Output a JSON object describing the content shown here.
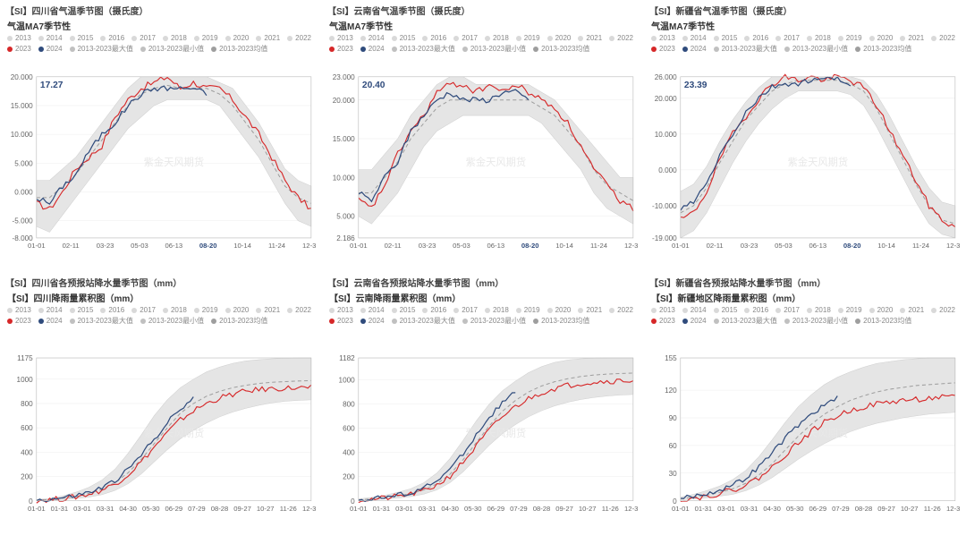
{
  "watermark": "紫金天风期货",
  "x_labels_top": [
    "01-01",
    "02-11",
    "03-23",
    "05-03",
    "06-13",
    "08-20",
    "10-14",
    "11-24",
    "12-31"
  ],
  "x_labels_bot": [
    "01-01",
    "01-31",
    "03-01",
    "03-31",
    "04-30",
    "05-30",
    "06-29",
    "07-29",
    "08-28",
    "09-27",
    "10-27",
    "11-26",
    "12-31"
  ],
  "highlight_x_label": "08-20",
  "legend_top": [
    {
      "label": "2013",
      "color": "#d9d9d9"
    },
    {
      "label": "2014",
      "color": "#d9d9d9"
    },
    {
      "label": "2015",
      "color": "#d9d9d9"
    },
    {
      "label": "2016",
      "color": "#d9d9d9"
    },
    {
      "label": "2017",
      "color": "#d9d9d9"
    },
    {
      "label": "2018",
      "color": "#d9d9d9"
    },
    {
      "label": "2019",
      "color": "#d9d9d9"
    },
    {
      "label": "2020",
      "color": "#d9d9d9"
    },
    {
      "label": "2021",
      "color": "#d9d9d9"
    },
    {
      "label": "2022",
      "color": "#d9d9d9"
    },
    {
      "label": "2023",
      "color": "#d62728"
    },
    {
      "label": "2024",
      "color": "#2f4b7c"
    },
    {
      "label": "2013-2023最大值",
      "color": "#c0c0c0"
    },
    {
      "label": "2013-2023最小值",
      "color": "#c0c0c0"
    },
    {
      "label": "2013-2023均值",
      "color": "#9e9e9e"
    }
  ],
  "legend_bot": [
    {
      "label": "2013",
      "color": "#d9d9d9"
    },
    {
      "label": "2014",
      "color": "#d9d9d9"
    },
    {
      "label": "2015",
      "color": "#d9d9d9"
    },
    {
      "label": "2016",
      "color": "#d9d9d9"
    },
    {
      "label": "2017",
      "color": "#d9d9d9"
    },
    {
      "label": "2018",
      "color": "#d9d9d9"
    },
    {
      "label": "2019",
      "color": "#d9d9d9"
    },
    {
      "label": "2020",
      "color": "#d9d9d9"
    },
    {
      "label": "2021",
      "color": "#d9d9d9"
    },
    {
      "label": "2022",
      "color": "#d9d9d9"
    },
    {
      "label": "2023",
      "color": "#d62728"
    },
    {
      "label": "2024",
      "color": "#2f4b7c"
    },
    {
      "label": "2013-2023最大值",
      "color": "#c0c0c0"
    },
    {
      "label": "2013-2023最小值",
      "color": "#c0c0c0"
    },
    {
      "label": "2013-2023均值",
      "color": "#9e9e9e"
    }
  ],
  "colors": {
    "2023": "#d62728",
    "2024": "#2f4b7c",
    "mean": "#9e9e9e",
    "band": "#e5e5e5",
    "band_stroke": "#cfcfcf",
    "grid": "#eeeeee",
    "axis": "#bbbbbb",
    "callout": "#2f4b7c",
    "highlight_tick": "#2f4b7c"
  },
  "panels": [
    {
      "id": "p0",
      "panel_title": "【SI】四川省气温季节图（摄氏度）",
      "chart_title": "气温MA7季节性",
      "type": "seasonal",
      "ylim": [
        -8,
        20
      ],
      "yticks": [
        -8,
        -5,
        0,
        5,
        10,
        15,
        20
      ],
      "callout": "17.27",
      "mean": [
        -1,
        -1,
        1,
        3,
        6,
        9,
        12,
        15,
        17,
        18,
        18.5,
        18,
        18,
        18,
        17,
        15,
        12,
        9,
        5,
        1,
        -1,
        -2
      ],
      "band_hi": [
        2,
        2,
        4,
        6,
        9,
        12,
        15,
        18,
        20,
        20,
        20,
        20,
        20,
        20,
        19,
        18,
        15,
        12,
        8,
        4,
        2,
        1
      ],
      "band_lo": [
        -6,
        -7,
        -4,
        -1,
        2,
        5,
        8,
        11,
        13,
        15,
        16,
        16,
        16,
        16,
        15,
        12,
        9,
        6,
        2,
        -2,
        -5,
        -6
      ],
      "s2023": [
        -2,
        -3,
        0,
        4,
        6,
        8,
        13,
        16,
        18,
        19,
        20,
        18,
        19,
        18,
        18,
        16,
        13,
        10,
        6,
        2,
        -1,
        -3
      ],
      "s2024": [
        -1,
        -2,
        1,
        3,
        7,
        10,
        12,
        15,
        17,
        18,
        18,
        18,
        18,
        17
      ],
      "s2024_len": 14
    },
    {
      "id": "p1",
      "panel_title": "【SI】云南省气温季节图（摄氏度）",
      "chart_title": "气温MA7季节性",
      "type": "seasonal",
      "ylim": [
        2.186,
        23
      ],
      "yticks": [
        2.186,
        5,
        10,
        15,
        20,
        23
      ],
      "callout": "20.40",
      "mean": [
        8,
        8,
        10,
        12,
        15,
        17,
        19,
        20,
        20,
        20,
        20,
        20,
        20,
        20,
        19,
        18,
        16,
        14,
        11,
        9,
        8,
        7
      ],
      "band_hi": [
        11,
        11,
        13,
        15,
        18,
        20,
        22,
        23,
        23,
        22,
        22,
        22,
        22,
        22,
        21,
        20,
        18,
        16,
        14,
        12,
        10,
        10
      ],
      "band_lo": [
        5,
        4,
        6,
        8,
        11,
        14,
        16,
        17,
        18,
        18,
        18,
        18,
        18,
        18,
        17,
        15,
        13,
        11,
        8,
        6,
        5,
        4
      ],
      "s2023": [
        7,
        6,
        9,
        13,
        16,
        18,
        21,
        22,
        22,
        21,
        22,
        21,
        22,
        21,
        20,
        19,
        17,
        14,
        11,
        9,
        7,
        6
      ],
      "s2024": [
        8,
        7,
        10,
        12,
        16,
        18,
        20,
        21,
        20,
        20,
        20,
        21,
        21,
        20
      ],
      "s2024_len": 14
    },
    {
      "id": "p2",
      "panel_title": "【SI】新疆省气温季节图（摄氏度）",
      "chart_title": "气温MA7季节性",
      "type": "seasonal",
      "ylim": [
        -19,
        26
      ],
      "yticks": [
        -19,
        -10,
        0,
        10,
        20,
        26
      ],
      "callout": "23.39",
      "mean": [
        -12,
        -10,
        -5,
        2,
        8,
        14,
        18,
        22,
        24,
        25,
        25,
        25,
        25,
        24,
        22,
        17,
        10,
        3,
        -4,
        -10,
        -14,
        -15
      ],
      "band_hi": [
        -6,
        -4,
        1,
        8,
        14,
        19,
        23,
        26,
        26,
        26,
        26,
        26,
        26,
        26,
        25,
        21,
        15,
        8,
        1,
        -5,
        -9,
        -10
      ],
      "band_lo": [
        -19,
        -17,
        -12,
        -5,
        2,
        8,
        13,
        17,
        20,
        22,
        22,
        22,
        22,
        21,
        18,
        12,
        5,
        -2,
        -9,
        -15,
        -18,
        -19
      ],
      "s2023": [
        -14,
        -12,
        -6,
        3,
        10,
        15,
        20,
        24,
        26,
        25,
        26,
        25,
        26,
        25,
        23,
        18,
        11,
        4,
        -3,
        -10,
        -14,
        -16
      ],
      "s2024": [
        -11,
        -9,
        -4,
        4,
        10,
        16,
        20,
        23,
        24,
        24,
        25,
        25,
        26,
        23
      ],
      "s2024_len": 14
    },
    {
      "id": "p3",
      "panel_title": "【SI】四川省各预报站降水量季节图（mm）",
      "chart_title": "【SI】四川降雨量累积图（mm）",
      "type": "cumulative",
      "ylim": [
        0,
        1175
      ],
      "yticks": [
        0,
        200,
        400,
        600,
        800,
        1000,
        1175
      ],
      "mean": [
        5,
        10,
        20,
        35,
        60,
        95,
        150,
        230,
        340,
        470,
        600,
        720,
        800,
        860,
        900,
        930,
        950,
        965,
        975,
        980,
        985,
        988
      ],
      "band_hi": [
        10,
        20,
        40,
        70,
        110,
        170,
        260,
        390,
        540,
        700,
        830,
        930,
        1000,
        1060,
        1100,
        1130,
        1150,
        1160,
        1168,
        1172,
        1174,
        1175
      ],
      "band_lo": [
        2,
        5,
        10,
        18,
        30,
        50,
        85,
        140,
        220,
        320,
        420,
        510,
        580,
        640,
        690,
        730,
        760,
        785,
        805,
        818,
        826,
        830
      ],
      "s2023": [
        4,
        9,
        18,
        32,
        55,
        88,
        140,
        215,
        320,
        440,
        560,
        665,
        740,
        800,
        845,
        875,
        900,
        915,
        922,
        926,
        928,
        930
      ],
      "s2024": [
        6,
        12,
        24,
        42,
        68,
        105,
        165,
        255,
        375,
        510,
        640,
        755,
        835
      ],
      "s2024_len": 13
    },
    {
      "id": "p4",
      "panel_title": "【SI】云南省各预报站降水量季节图（mm）",
      "chart_title": "【SI】云南降雨量累积图（mm）",
      "type": "cumulative",
      "ylim": [
        0,
        1182
      ],
      "yticks": [
        0,
        200,
        400,
        600,
        800,
        1000,
        1182
      ],
      "mean": [
        8,
        15,
        25,
        40,
        60,
        90,
        140,
        220,
        340,
        480,
        620,
        740,
        830,
        900,
        950,
        985,
        1010,
        1028,
        1040,
        1048,
        1053,
        1056
      ],
      "band_hi": [
        15,
        28,
        45,
        70,
        100,
        150,
        230,
        350,
        500,
        660,
        800,
        910,
        990,
        1060,
        1110,
        1145,
        1165,
        1175,
        1180,
        1182,
        1182,
        1182
      ],
      "band_lo": [
        4,
        8,
        14,
        22,
        35,
        55,
        90,
        150,
        240,
        350,
        460,
        555,
        630,
        695,
        745,
        785,
        815,
        838,
        855,
        867,
        875,
        880
      ],
      "s2023": [
        7,
        13,
        22,
        36,
        55,
        83,
        130,
        205,
        320,
        450,
        585,
        695,
        780,
        845,
        895,
        930,
        955,
        972,
        983,
        990,
        994,
        996
      ],
      "s2024": [
        9,
        17,
        29,
        46,
        70,
        105,
        165,
        260,
        395,
        545,
        690,
        810,
        895
      ],
      "s2024_len": 13
    },
    {
      "id": "p5",
      "panel_title": "【SI】新疆省各预报站降水量季节图（mm）",
      "chart_title": "【SI】新疆地区降雨量累积图（mm）",
      "type": "cumulative",
      "ylim": [
        0,
        155
      ],
      "yticks": [
        0,
        30,
        60,
        90,
        120,
        155
      ],
      "mean": [
        2,
        4,
        6,
        9,
        13,
        19,
        28,
        40,
        55,
        70,
        83,
        94,
        102,
        109,
        114,
        118,
        121,
        123,
        125,
        126,
        127,
        128
      ],
      "band_hi": [
        4,
        7,
        11,
        16,
        23,
        33,
        48,
        66,
        85,
        102,
        115,
        126,
        134,
        140,
        145,
        149,
        151,
        153,
        154,
        155,
        155,
        155
      ],
      "band_lo": [
        1,
        2,
        3,
        5,
        7,
        11,
        17,
        25,
        35,
        45,
        54,
        62,
        69,
        75,
        80,
        84,
        87,
        90,
        92,
        94,
        95,
        96
      ],
      "s2023": [
        2,
        3,
        5,
        8,
        12,
        17,
        25,
        36,
        50,
        63,
        75,
        85,
        92,
        98,
        102,
        105,
        107,
        109,
        110,
        111,
        112,
        112
      ],
      "s2024": [
        3,
        5,
        8,
        12,
        17,
        25,
        37,
        52,
        68,
        82,
        94,
        104,
        111
      ],
      "s2024_len": 13
    }
  ]
}
